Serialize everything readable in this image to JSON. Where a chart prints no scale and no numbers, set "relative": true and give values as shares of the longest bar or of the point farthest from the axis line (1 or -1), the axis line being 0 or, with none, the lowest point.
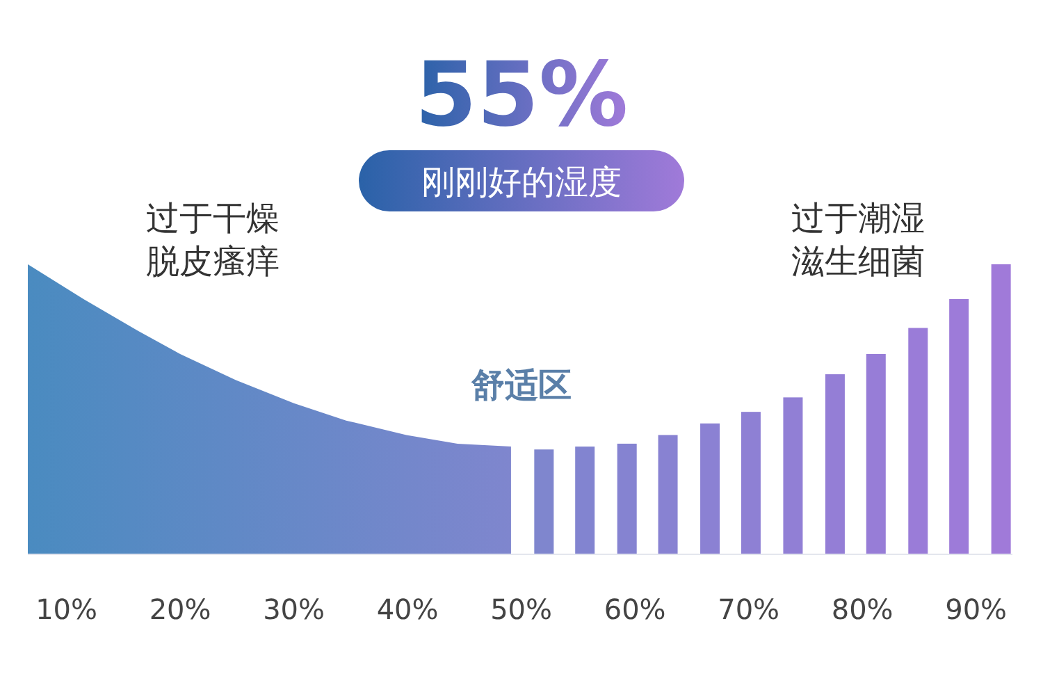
{
  "chart_data": {
    "type": "area",
    "title": "55%",
    "subtitle": "刚刚好的湿度",
    "relative": true,
    "annotations": [
      "过于干燥",
      "脱皮瘙痒",
      "舒适区",
      "过于潮湿",
      "滋生细菌"
    ],
    "xlim": [
      6.6,
      93.2
    ],
    "xticks": [
      {
        "value": 10,
        "label": "10%"
      },
      {
        "value": 20,
        "label": "20%"
      },
      {
        "value": 30,
        "label": "30%"
      },
      {
        "value": 40,
        "label": "40%"
      },
      {
        "value": 50,
        "label": "50%"
      },
      {
        "value": 60,
        "label": "60%"
      },
      {
        "value": 70,
        "label": "70%"
      },
      {
        "value": 80,
        "label": "80%"
      },
      {
        "value": 90,
        "label": "90%"
      }
    ],
    "series": [
      {
        "color": "#4a8bc0",
        "x": [
          6.6,
          11.5,
          16.3,
          20,
          24.9,
          30,
          34.6,
          39.9,
          44.4,
          49.1
        ],
        "values": [
          1.0,
          0.88,
          0.77,
          0.69,
          0.6,
          0.52,
          0.46,
          0.41,
          0.38,
          0.37
        ]
      },
      {
        "type": "bar",
        "x": [
          52.0,
          55.6,
          59.3,
          62.9,
          66.6,
          70.2,
          73.9,
          77.6,
          81.2,
          84.9,
          88.5,
          92.2
        ],
        "values": [
          0.36,
          0.37,
          0.38,
          0.41,
          0.45,
          0.49,
          0.54,
          0.62,
          0.69,
          0.78,
          0.88,
          1.0
        ],
        "colors": [
          "#7f86ce",
          "#8284d0",
          "#8583d1",
          "#8882d2",
          "#8b81d3",
          "#8e80d4",
          "#917fd5",
          "#947ed6",
          "#977dd7",
          "#9a7cd8",
          "#9d7bd9",
          "#a07ad9"
        ]
      }
    ]
  }
}
